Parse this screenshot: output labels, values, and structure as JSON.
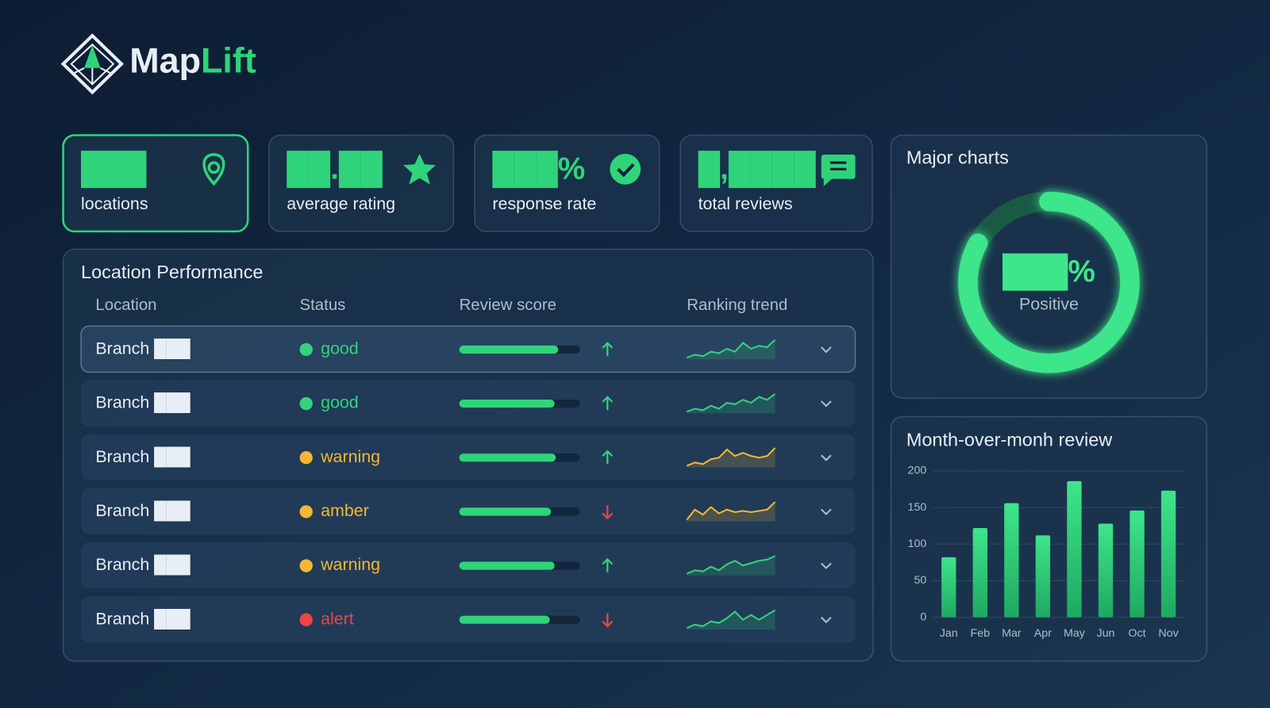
{
  "brand": {
    "name_part1": "Map",
    "name_part2": "Lift"
  },
  "kpis": [
    {
      "value": "███",
      "label": "locations",
      "icon": "pin",
      "active": true
    },
    {
      "value": "██.██",
      "label": "average rating",
      "icon": "star",
      "active": false
    },
    {
      "value": "███%",
      "label": "response rate",
      "icon": "check",
      "active": false
    },
    {
      "value": "█,████",
      "label": "total reviews",
      "icon": "chat",
      "active": false
    }
  ],
  "table": {
    "title": "Location Performance",
    "columns": [
      "Location",
      "Status",
      "Review score",
      "Ranking trend"
    ],
    "score_range": [
      0,
      100
    ],
    "rows": [
      {
        "location": "Branch ███",
        "status": "good",
        "status_color": "#34d27b",
        "score": 82,
        "trend": "up",
        "sparkline": [
          2,
          3,
          2.5,
          4,
          3.5,
          5,
          4,
          7,
          5,
          6,
          5.5,
          8
        ],
        "sparkline_color": "#34d27b"
      },
      {
        "location": "Branch ███",
        "status": "good",
        "status_color": "#34d27b",
        "score": 79,
        "trend": "up",
        "sparkline": [
          2,
          3,
          2.5,
          4,
          3,
          5,
          4.5,
          6,
          5,
          7,
          6,
          8
        ],
        "sparkline_color": "#34d27b"
      },
      {
        "location": "Branch ███",
        "status": "warning",
        "status_color": "#f5b731",
        "score": 80,
        "trend": "up",
        "sparkline": [
          2,
          3,
          2.5,
          4,
          4.5,
          7,
          5,
          6,
          5,
          4.5,
          5,
          7.5
        ],
        "sparkline_color": "#f5b731"
      },
      {
        "location": "Branch ███",
        "status": "amber",
        "status_color": "#f5b731",
        "score": 76,
        "trend": "down",
        "sparkline": [
          1,
          5,
          3,
          6,
          3.5,
          5,
          4,
          4.5,
          4,
          4.5,
          5,
          8
        ],
        "sparkline_color": "#f5b731"
      },
      {
        "location": "Branch ███",
        "status": "warning",
        "status_color": "#f5b731",
        "score": 79,
        "trend": "up",
        "sparkline": [
          1,
          2.5,
          2,
          4,
          2.5,
          5,
          6.5,
          4.5,
          5.5,
          6.5,
          7,
          8.5
        ],
        "sparkline_color": "#34d27b"
      },
      {
        "location": "Branch ███",
        "status": "alert",
        "status_color": "#ef4444",
        "score": 75,
        "trend": "down",
        "sparkline": [
          1,
          2,
          1.5,
          3,
          2.5,
          4,
          6,
          3.5,
          5,
          3.5,
          5,
          6.5
        ],
        "sparkline_color": "#34d27b"
      }
    ]
  },
  "donut": {
    "title": "Major charts",
    "value_text": "███%",
    "label": "Positive",
    "value": 83,
    "color": "#3ee68a"
  },
  "chart_data": {
    "type": "bar",
    "title": "Month-over-monh review",
    "categories": [
      "Jan",
      "Feb",
      "Mar",
      "Apr",
      "May",
      "Jun",
      "Oct",
      "Nov"
    ],
    "values": [
      82,
      122,
      156,
      112,
      186,
      128,
      146,
      173
    ],
    "color": "#2fd47a",
    "ylim": [
      0,
      200
    ],
    "yticks": [
      0,
      50,
      100,
      150,
      200
    ],
    "grid": true
  }
}
